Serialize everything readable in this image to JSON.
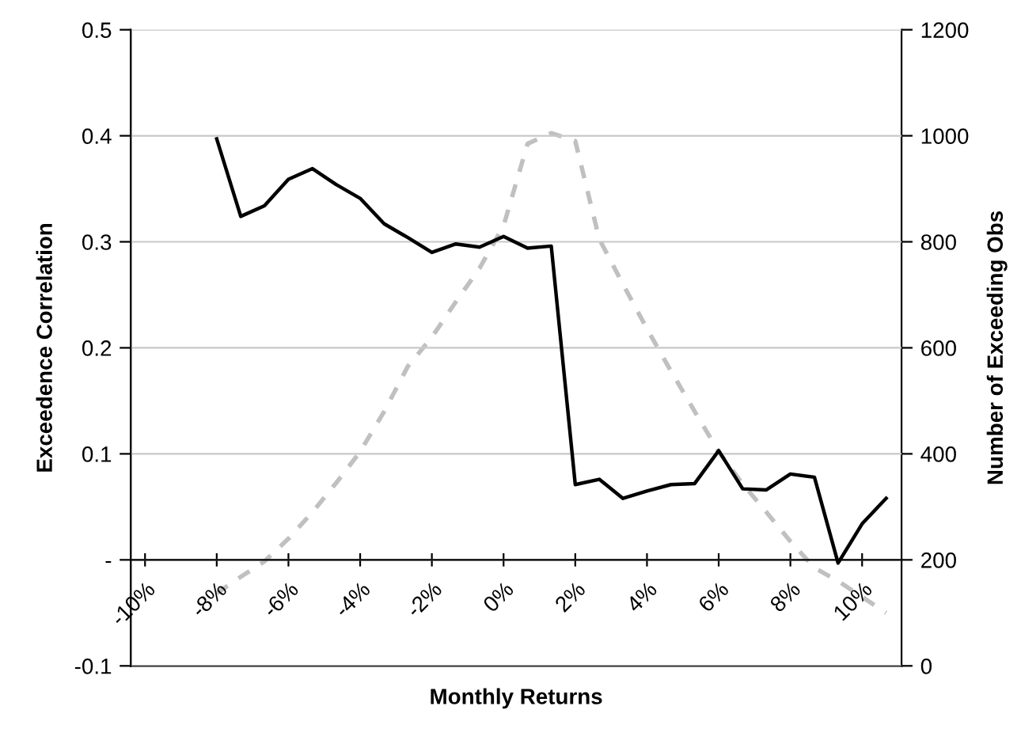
{
  "chart_data": {
    "type": "line",
    "xlabel": "Monthly Returns",
    "ylabel": "Exceedence Correlation",
    "y2label": "Number of Exceeding Obs",
    "x": [
      -8,
      -7.33,
      -6.67,
      -6,
      -5.33,
      -4.67,
      -4,
      -3.33,
      -2.67,
      -2,
      -1.33,
      -0.67,
      0,
      0.67,
      1.33,
      2,
      2.67,
      3.33,
      4,
      4.67,
      5.33,
      6,
      6.67,
      7.33,
      8,
      8.67,
      9.33,
      10,
      10.67
    ],
    "series": [
      {
        "color": "#000000",
        "line_style": "solid",
        "values": [
          0.397,
          0.324,
          0.334,
          0.359,
          0.369,
          0.354,
          0.341,
          0.317,
          0.304,
          0.29,
          0.298,
          0.295,
          0.305,
          0.294,
          0.296,
          0.071,
          0.076,
          0.058,
          0.065,
          0.071,
          0.072,
          0.103,
          0.067,
          0.066,
          0.081,
          0.078,
          -0.003,
          0.034,
          0.058
        ]
      },
      {
        "color": "#c0c0c0",
        "line_style": "dashed",
        "axis": "y2",
        "values": [
          137,
          168,
          197,
          240,
          290,
          345,
          404,
          480,
          565,
          620,
          687,
          750,
          830,
          985,
          1005,
          990,
          805,
          720,
          636,
          556,
          480,
          404,
          343,
          290,
          235,
          185,
          160,
          130,
          100
        ]
      }
    ],
    "xlim": [
      -10.4,
      11.1
    ],
    "xticks": [
      {
        "value": -10,
        "label": "-10%"
      },
      {
        "value": -8,
        "label": "-8%"
      },
      {
        "value": -6,
        "label": "-6%"
      },
      {
        "value": -4,
        "label": "-4%"
      },
      {
        "value": -2,
        "label": "-2%"
      },
      {
        "value": 0,
        "label": "0%"
      },
      {
        "value": 2,
        "label": "2%"
      },
      {
        "value": 4,
        "label": "4%"
      },
      {
        "value": 6,
        "label": "6%"
      },
      {
        "value": 8,
        "label": "8%"
      },
      {
        "value": 10,
        "label": "10%"
      }
    ],
    "ylim": [
      -0.1,
      0.5
    ],
    "yticks": [
      -0.1,
      {
        "value": 0,
        "label": "-"
      },
      0.1,
      0.2,
      0.3,
      0.4,
      0.5
    ],
    "y2lim": [
      0,
      1200
    ],
    "y2ticks": [
      0,
      200,
      400,
      600,
      800,
      1000,
      1200
    ],
    "grid": "y",
    "legend": false,
    "marker": "none"
  }
}
